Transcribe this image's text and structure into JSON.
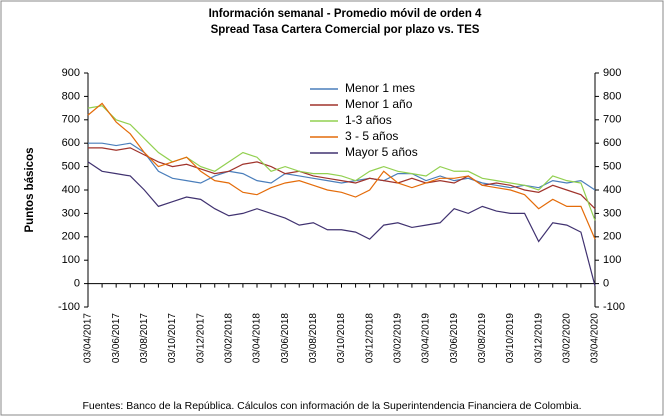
{
  "chart_data": {
    "type": "line",
    "title": "Información semanal - Promedio móvil de orden 4",
    "subtitle": "Spread Tasa Cartera Comercial por plazo vs. TES",
    "y_label": "Puntos básicos",
    "source": "Fuentes: Banco de la República. Cálculos con información de la Superintendencia Financiera de Colombia.",
    "categories": [
      "03/04/2017",
      null,
      "03/06/2017",
      null,
      "03/08/2017",
      null,
      "03/10/2017",
      null,
      "03/12/2017",
      null,
      "03/02/2018",
      null,
      "03/04/2018",
      null,
      "03/06/2018",
      null,
      "03/08/2018",
      null,
      "03/10/2018",
      null,
      "03/12/2018",
      null,
      "03/02/2019",
      null,
      "03/04/2019",
      null,
      "03/06/2019",
      null,
      "03/08/2019",
      null,
      "03/10/2019",
      null,
      "03/12/2019",
      null,
      "03/02/2020",
      null,
      "03/04/2020"
    ],
    "series": [
      {
        "name": "Menor 1 mes",
        "color": "#4a7ebb",
        "values": [
          600,
          600,
          590,
          600,
          560,
          480,
          450,
          440,
          430,
          460,
          480,
          470,
          440,
          430,
          470,
          460,
          450,
          440,
          430,
          440,
          450,
          440,
          470,
          470,
          440,
          460,
          440,
          450,
          430,
          420,
          410,
          420,
          410,
          440,
          430,
          440,
          400
        ]
      },
      {
        "name": "Menor 1 año",
        "color": "#a0332b",
        "values": [
          580,
          580,
          570,
          580,
          550,
          520,
          500,
          510,
          490,
          470,
          480,
          510,
          520,
          500,
          470,
          480,
          460,
          450,
          440,
          430,
          450,
          440,
          430,
          450,
          430,
          440,
          430,
          460,
          420,
          430,
          420,
          400,
          390,
          420,
          400,
          380,
          320
        ]
      },
      {
        "name": "1-3 años",
        "color": "#92d050",
        "values": [
          750,
          760,
          700,
          680,
          620,
          560,
          520,
          540,
          500,
          480,
          520,
          560,
          540,
          480,
          500,
          480,
          470,
          470,
          460,
          440,
          480,
          500,
          480,
          470,
          460,
          500,
          480,
          480,
          450,
          440,
          430,
          420,
          400,
          460,
          440,
          430,
          270
        ]
      },
      {
        "name": "3 - 5 años",
        "color": "#e46c0a",
        "values": [
          720,
          770,
          690,
          640,
          560,
          500,
          520,
          540,
          480,
          440,
          430,
          390,
          380,
          410,
          430,
          440,
          420,
          400,
          390,
          370,
          400,
          480,
          430,
          410,
          430,
          450,
          450,
          460,
          420,
          410,
          400,
          380,
          320,
          360,
          330,
          330,
          190
        ]
      },
      {
        "name": "Mayor 5 años",
        "color": "#403270",
        "values": [
          520,
          480,
          470,
          460,
          400,
          330,
          350,
          370,
          360,
          320,
          290,
          300,
          320,
          300,
          280,
          250,
          260,
          230,
          230,
          220,
          190,
          250,
          260,
          240,
          250,
          260,
          320,
          300,
          330,
          310,
          300,
          300,
          180,
          260,
          250,
          220,
          -10
        ]
      }
    ],
    "ylim": [
      -100,
      900
    ],
    "yticks": [
      -100,
      0,
      100,
      200,
      300,
      400,
      500,
      600,
      700,
      800,
      900
    ],
    "y2lim": [
      -100,
      900
    ],
    "y2ticks": [
      -100,
      0,
      100,
      200,
      300,
      400,
      500,
      600,
      700,
      800,
      900
    ]
  }
}
